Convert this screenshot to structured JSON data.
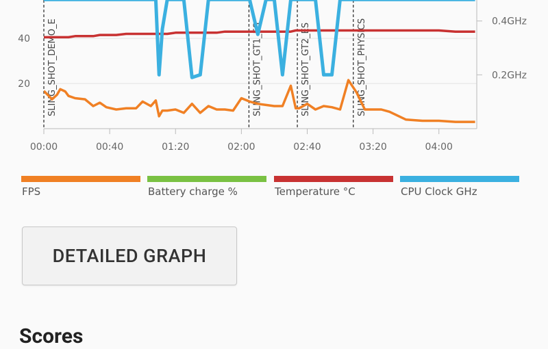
{
  "chart_data": {
    "type": "line",
    "x": [
      0,
      3,
      5,
      8,
      10,
      13,
      15,
      19,
      25,
      30,
      34,
      38,
      44,
      50,
      56,
      60,
      65,
      68,
      70,
      72,
      75,
      80,
      85,
      90,
      95,
      100,
      105,
      110,
      115,
      120,
      125,
      130,
      135,
      140,
      145,
      150,
      153,
      155,
      160,
      165,
      170,
      175,
      180,
      185,
      190,
      195,
      200,
      205,
      210,
      220,
      230,
      240,
      250,
      262
    ],
    "xlim": [
      0,
      263
    ],
    "xticks": [
      {
        "value": 0,
        "label": "00:00"
      },
      {
        "value": 40,
        "label": "00:40"
      },
      {
        "value": 80,
        "label": "01:20"
      },
      {
        "value": 120,
        "label": "02:00"
      },
      {
        "value": 160,
        "label": "02:40"
      },
      {
        "value": 200,
        "label": "03:20"
      },
      {
        "value": 240,
        "label": "04:00"
      }
    ],
    "ylim": [
      0,
      57
    ],
    "yticks": [
      20,
      40
    ],
    "y2lim": [
      0,
      0.478
    ],
    "y2ticks": [
      {
        "value": 0.2,
        "label": "0.2GHz"
      },
      {
        "value": 0.4,
        "label": "0.4GHz"
      }
    ],
    "grid": true,
    "series": [
      {
        "name": "FPS",
        "color": "#f08024",
        "values": [
          16.7,
          14.5,
          13,
          15,
          17.5,
          16.5,
          14.5,
          13.5,
          13,
          10,
          11.5,
          9.5,
          8.5,
          9,
          9,
          12,
          10,
          12.5,
          5.5,
          8,
          8,
          8.5,
          7,
          11,
          7,
          10,
          8.5,
          8.5,
          8,
          13.5,
          12,
          11,
          10.5,
          10,
          10,
          19,
          9,
          9,
          11,
          8.5,
          10,
          9.5,
          8.5,
          21.5,
          16,
          8.5,
          8.5,
          8.5,
          7.5,
          4,
          3.5,
          3.5,
          3,
          3
        ]
      },
      {
        "name": "Battery charge %",
        "color": "#7ac143",
        "values": [
          null,
          null,
          null,
          null,
          null,
          null,
          null,
          null,
          null,
          null,
          null,
          null,
          null,
          null,
          null,
          null,
          null,
          null,
          null,
          null,
          null,
          null,
          null,
          null,
          null,
          null,
          null,
          null,
          null,
          null,
          null,
          null,
          null,
          null,
          null,
          null,
          null,
          null,
          null,
          null,
          null,
          null,
          null,
          null,
          null,
          null,
          null,
          null,
          null,
          null,
          null,
          null,
          null,
          null
        ]
      },
      {
        "name": "Temperature °C",
        "color": "#c83232",
        "values": [
          40.5,
          40.5,
          40.5,
          40.5,
          40.5,
          40.5,
          40.5,
          41,
          41,
          41,
          41.5,
          41.5,
          41.5,
          42,
          42,
          42,
          42,
          42,
          42,
          42,
          42,
          42.5,
          42.5,
          42.5,
          42.5,
          42.5,
          42.5,
          43,
          43,
          43,
          43,
          43,
          43,
          43,
          43,
          43,
          43.5,
          43.5,
          43.5,
          43.5,
          43.5,
          43.5,
          43.5,
          43.5,
          43.5,
          43.5,
          43.5,
          43.5,
          43.5,
          43.5,
          43.5,
          43.5,
          43,
          43
        ]
      },
      {
        "name": "CPU Clock GHz",
        "color": "#3bb0e0",
        "axis": "y2",
        "values": [
          0.48,
          0.48,
          0.48,
          0.48,
          0.48,
          0.48,
          0.48,
          0.48,
          0.48,
          0.48,
          0.48,
          0.48,
          0.48,
          0.48,
          0.48,
          0.48,
          0.48,
          0.48,
          0.2,
          0.37,
          0.48,
          0.48,
          0.48,
          0.19,
          0.2,
          0.48,
          0.48,
          0.48,
          0.48,
          0.48,
          0.48,
          0.35,
          0.48,
          0.48,
          0.2,
          0.48,
          0.48,
          0.48,
          0.48,
          0.48,
          0.2,
          0.2,
          0.48,
          0.48,
          0.48,
          0.48,
          0.48,
          0.48,
          0.48,
          0.48,
          0.48,
          0.48,
          0.48,
          0.48
        ]
      }
    ],
    "annotations": [
      {
        "x": 0,
        "text": "SLING_SHOT_DEMO_E"
      },
      {
        "x": 124.6,
        "text": "SLING_SHOT_GT1_ES_"
      },
      {
        "x": 154,
        "text": "SLING_SHOT_GT2_ES"
      },
      {
        "x": 188,
        "text": "SLING_SHOT_PHYSICS"
      }
    ]
  },
  "button": {
    "label": "DETAILED GRAPH"
  },
  "section": {
    "heading": "Scores"
  }
}
